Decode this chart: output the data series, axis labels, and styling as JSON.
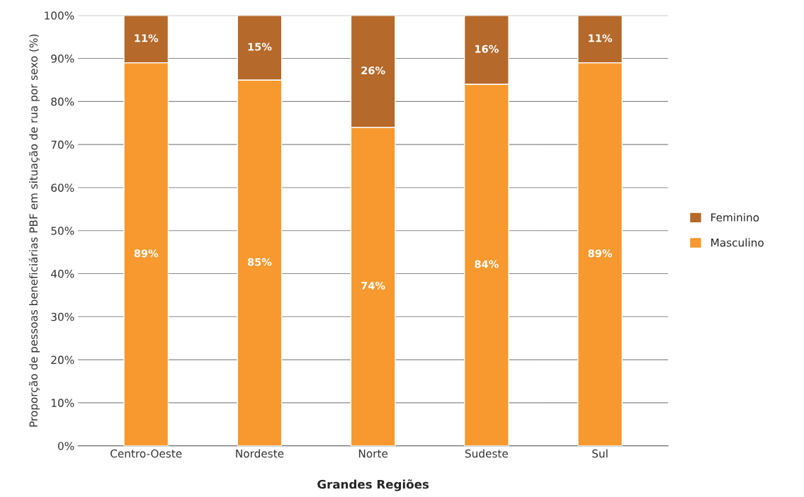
{
  "chart_data": {
    "type": "bar",
    "stacked": true,
    "xlabel": "Grandes Regiões",
    "ylabel": "Proporção de pessoas beneficiárias PBF em situação de rua por sexo (%)",
    "categories": [
      "Centro-Oeste",
      "Nordeste",
      "Norte",
      "Sudeste",
      "Sul"
    ],
    "series": [
      {
        "name": "Masculino",
        "color": "#f7992e",
        "values": [
          89,
          85,
          74,
          84,
          89
        ],
        "value_labels": [
          "89%",
          "85%",
          "74%",
          "84%",
          "89%"
        ]
      },
      {
        "name": "Feminino",
        "color": "#b5692a",
        "values": [
          11,
          15,
          26,
          16,
          11
        ],
        "value_labels": [
          "11%",
          "15%",
          "26%",
          "16%",
          "11%"
        ]
      }
    ],
    "ylim": [
      0,
      100
    ],
    "yticks": [
      {
        "value": 0,
        "label": "0%"
      },
      {
        "value": 10,
        "label": "10%"
      },
      {
        "value": 20,
        "label": "20%"
      },
      {
        "value": 30,
        "label": "30%"
      },
      {
        "value": 40,
        "label": "40%"
      },
      {
        "value": 50,
        "label": "50%"
      },
      {
        "value": 60,
        "label": "60%"
      },
      {
        "value": 70,
        "label": "70%"
      },
      {
        "value": 80,
        "label": "80%"
      },
      {
        "value": 90,
        "label": "90%"
      },
      {
        "value": 100,
        "label": "100%"
      }
    ],
    "grid": "y",
    "legend": "right"
  }
}
